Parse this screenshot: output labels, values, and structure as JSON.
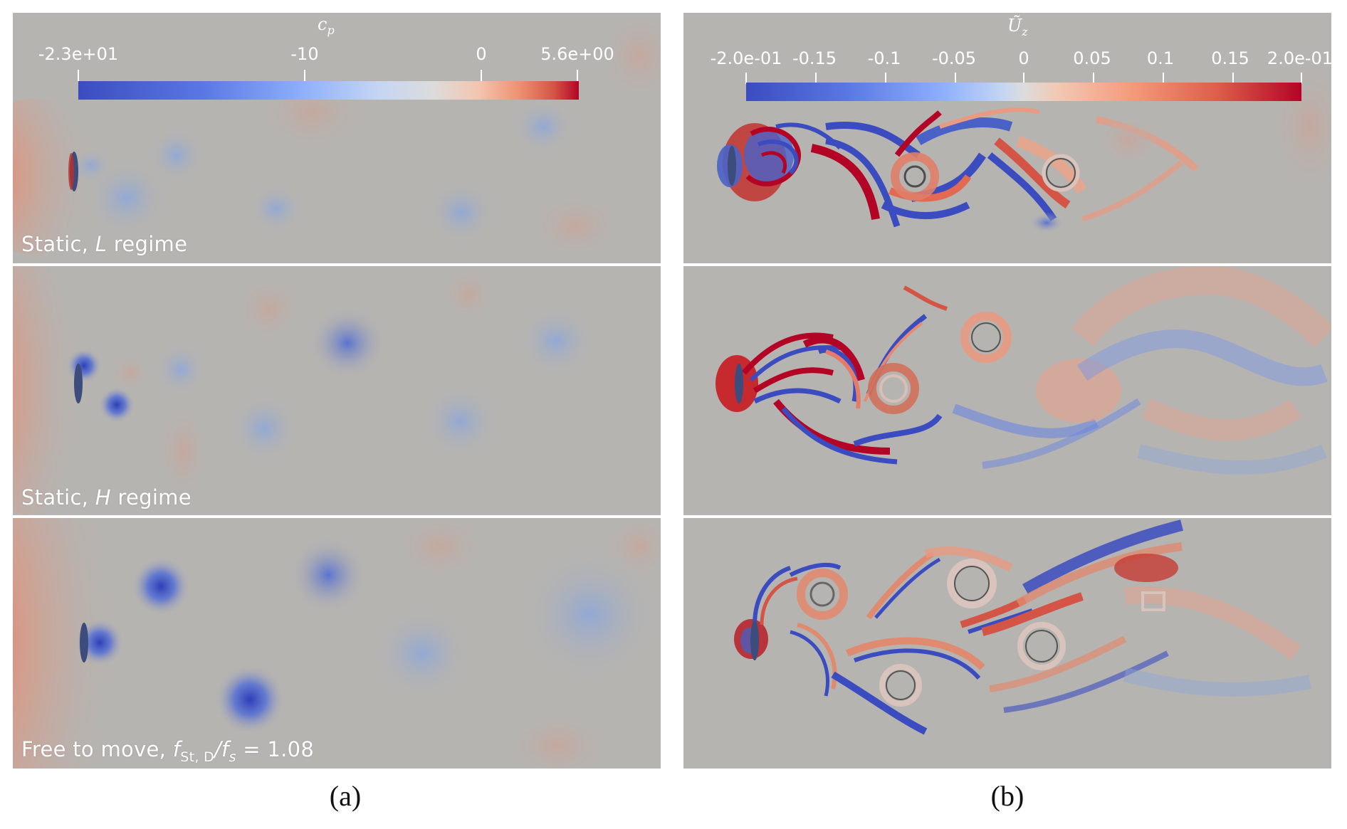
{
  "figure": {
    "captions": [
      "(a)",
      "(b)"
    ]
  },
  "panel_a": {
    "colorbar": {
      "title": "c",
      "title_sub": "p",
      "ticks": [
        "-2.3e+01",
        "-10",
        "0",
        "5.6e+00"
      ],
      "colormap": [
        "#3b4cc0",
        "#6788ee",
        "#9abbff",
        "#c9d7f0",
        "#edd1c2",
        "#f7a889",
        "#e26952",
        "#b40426"
      ]
    },
    "rows": [
      {
        "prefix": "Static, ",
        "italic": "L",
        "suffix": " regime"
      },
      {
        "prefix": "Static, ",
        "italic": "H",
        "suffix": " regime"
      },
      {
        "prefix": "Free to move, ",
        "math": "f",
        "math_sub": "St, D",
        "math_mid": "/f",
        "math_sub2": "s",
        "suffix": " = 1.08"
      }
    ]
  },
  "panel_b": {
    "colorbar": {
      "title": "Ũ",
      "title_sub": "z",
      "ticks": [
        "-2.0e-01",
        "-0.15",
        "-0.1",
        "-0.05",
        "0",
        "0.05",
        "0.1",
        "0.15",
        "2.0e-01"
      ]
    }
  },
  "colors": {
    "background_field": "#b6b4b1",
    "cold": "#3b4cc0",
    "warm": "#b40426"
  }
}
